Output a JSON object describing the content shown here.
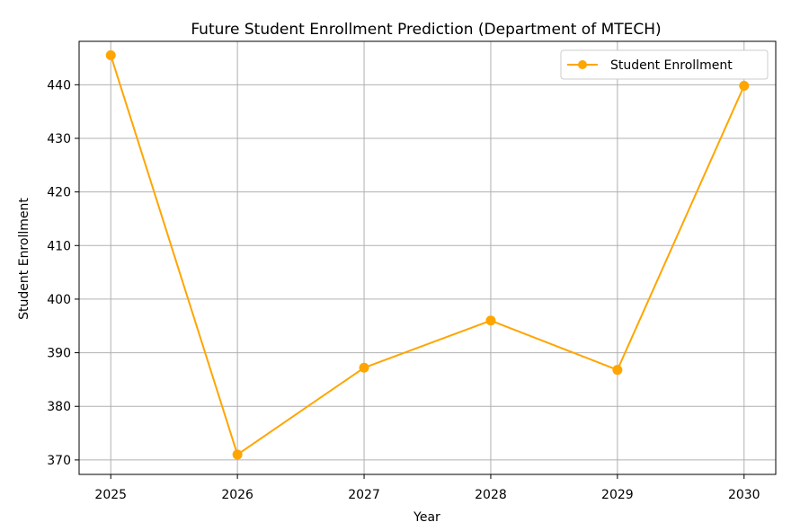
{
  "chart_data": {
    "type": "line",
    "title": "Future Student Enrollment Prediction (Department of MTECH)",
    "xlabel": "Year",
    "ylabel": "Student Enrollment",
    "x": [
      2025,
      2026,
      2027,
      2028,
      2029,
      2030
    ],
    "x_ticks": [
      "2025",
      "2026",
      "2027",
      "2028",
      "2029",
      "2030"
    ],
    "y_ticks": [
      "370",
      "380",
      "390",
      "400",
      "410",
      "420",
      "430",
      "440"
    ],
    "xlim": [
      2024.75,
      2030.25
    ],
    "ylim": [
      367.3,
      448.1
    ],
    "grid": true,
    "legend_position": "top-right",
    "series": [
      {
        "name": "Student Enrollment",
        "color": "#ffa500",
        "marker": "circle",
        "values": [
          445.5,
          371.0,
          387.2,
          396.0,
          386.8,
          439.8
        ]
      }
    ]
  }
}
